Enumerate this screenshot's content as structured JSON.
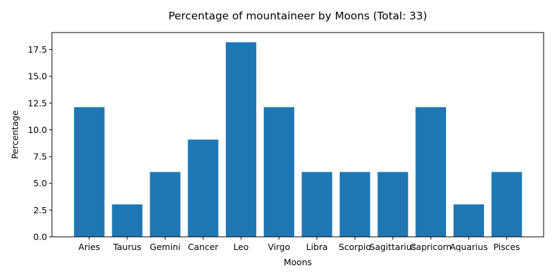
{
  "chart_data": {
    "type": "bar",
    "title": "Percentage of mountaineer by Moons (Total: 33)",
    "xlabel": "Moons",
    "ylabel": "Percentage",
    "categories": [
      "Aries",
      "Taurus",
      "Gemini",
      "Cancer",
      "Leo",
      "Virgo",
      "Libra",
      "Scorpio",
      "Sagittarius",
      "Capricorn",
      "Aquarius",
      "Pisces"
    ],
    "values": [
      12.12,
      3.03,
      6.06,
      9.09,
      18.18,
      12.12,
      6.06,
      6.06,
      6.06,
      12.12,
      3.03,
      6.06
    ],
    "ylim": [
      0,
      19.09
    ],
    "yticks": [
      "0.0",
      "2.5",
      "5.0",
      "7.5",
      "10.0",
      "12.5",
      "15.0",
      "17.5"
    ],
    "bar_color": "#1f77b4",
    "grid": false,
    "legend": "none"
  }
}
